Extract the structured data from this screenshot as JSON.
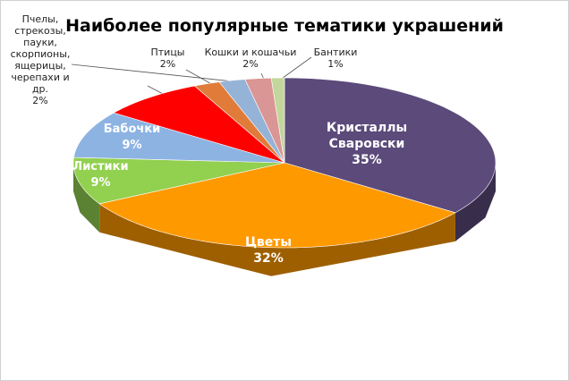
{
  "chart_data": {
    "type": "pie",
    "title": "Наиболее популярные тематики украшений",
    "categories": [
      "Кристаллы Сваровски",
      "Цветы",
      "Листики",
      "Бабочки",
      null,
      "Птицы",
      "Пчелы, стрекозы, пауки, скорпионы, ящерицы, черепахи и др.",
      "Кошки и кошачьи",
      "Бантики"
    ],
    "values": [
      35,
      32,
      9,
      9,
      8,
      2,
      2,
      2,
      1
    ],
    "value_labels": [
      "35%",
      "32%",
      "9%",
      "9%",
      null,
      "2%",
      "2%",
      "2%",
      "1%"
    ],
    "colors": [
      "#5b4a7a",
      "#ff9900",
      "#92d050",
      "#8db3e2",
      "#ff0000",
      "#e07b39",
      "#95b3d7",
      "#d99694",
      "#c3d69b"
    ],
    "three_d": true
  }
}
